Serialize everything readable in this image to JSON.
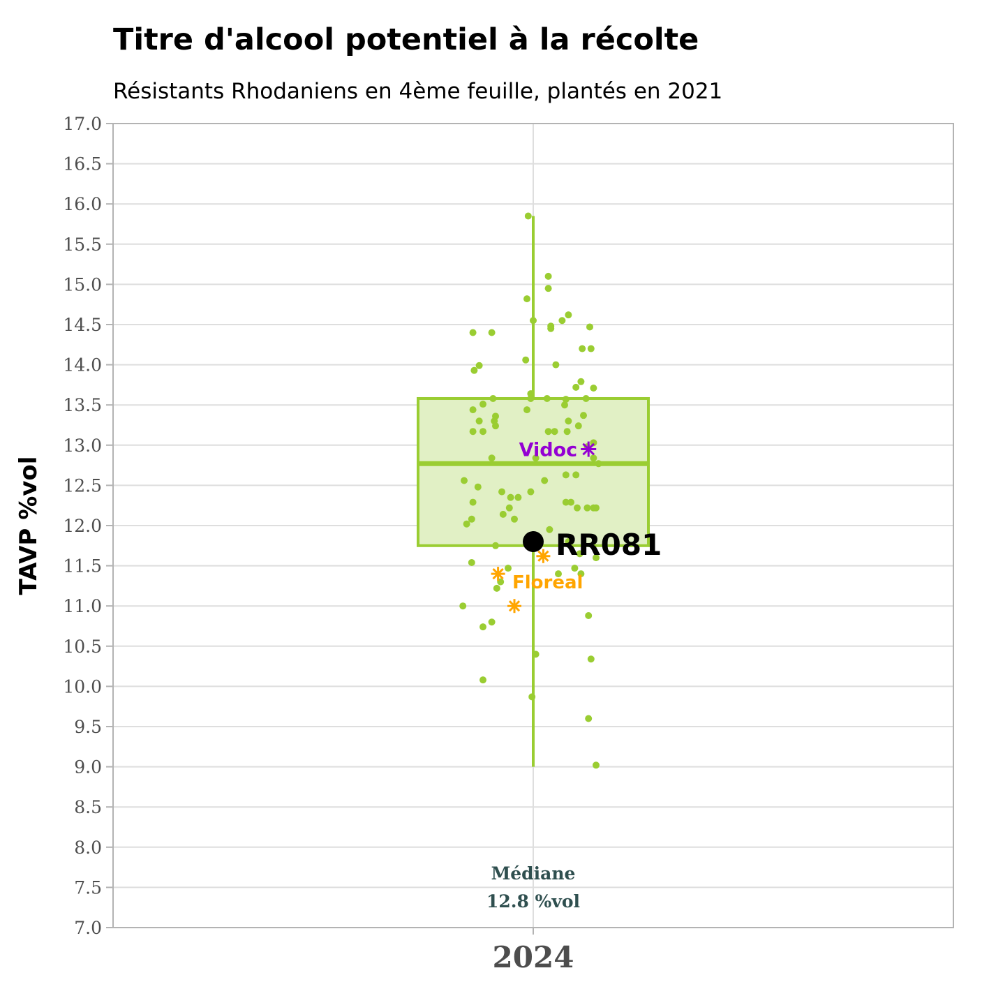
{
  "chart_data": {
    "type": "box",
    "title": "Titre d'alcool potentiel à la récolte",
    "subtitle": "Résistants Rhodaniens en 4ème feuille, plantés en 2021",
    "ylabel": "TAVP %vol",
    "xlabel": "",
    "ylim": [
      7.0,
      17.0
    ],
    "y_ticks": [
      "7.0",
      "7.5",
      "8.0",
      "8.5",
      "9.0",
      "9.5",
      "10.0",
      "10.5",
      "11.0",
      "11.5",
      "12.0",
      "12.5",
      "13.0",
      "13.5",
      "14.0",
      "14.5",
      "15.0",
      "15.5",
      "16.0",
      "16.5",
      "17.0"
    ],
    "categories": [
      "2024"
    ],
    "grid": true,
    "colors": {
      "box": "#9acd32",
      "box_fill": "#e1f0c5",
      "point": "#9acd32",
      "highlight": "#000000",
      "vidoc": "#9400d3",
      "floreal": "#ffa500",
      "median_note": "#2f4f4f"
    },
    "box": {
      "min": 9.0,
      "q1": 11.75,
      "median": 12.77,
      "q3": 13.58,
      "max": 15.85
    },
    "median_note": {
      "line1": "Médiane",
      "line2": "12.8 %vol"
    },
    "points": [
      [
        -0.04,
        15.85
      ],
      [
        0.12,
        15.1
      ],
      [
        0.12,
        14.95
      ],
      [
        -0.05,
        14.82
      ],
      [
        0.14,
        14.45
      ],
      [
        0.14,
        14.48
      ],
      [
        0.28,
        14.62
      ],
      [
        0.23,
        14.55
      ],
      [
        0.45,
        14.47
      ],
      [
        -0.48,
        14.4
      ],
      [
        -0.33,
        14.4
      ],
      [
        0.0,
        14.55
      ],
      [
        0.18,
        14.0
      ],
      [
        -0.06,
        14.06
      ],
      [
        -0.43,
        13.99
      ],
      [
        -0.47,
        13.93
      ],
      [
        0.39,
        14.2
      ],
      [
        0.46,
        14.2
      ],
      [
        0.38,
        13.79
      ],
      [
        0.34,
        13.72
      ],
      [
        0.42,
        13.58
      ],
      [
        0.11,
        13.58
      ],
      [
        -0.02,
        13.58
      ],
      [
        0.26,
        13.57
      ],
      [
        0.48,
        13.71
      ],
      [
        -0.32,
        13.58
      ],
      [
        -0.02,
        13.64
      ],
      [
        -0.4,
        13.51
      ],
      [
        -0.05,
        13.44
      ],
      [
        0.25,
        13.5
      ],
      [
        -0.48,
        13.44
      ],
      [
        -0.3,
        13.36
      ],
      [
        -0.31,
        13.3
      ],
      [
        -0.3,
        13.24
      ],
      [
        -0.43,
        13.3
      ],
      [
        0.4,
        13.37
      ],
      [
        0.28,
        13.3
      ],
      [
        0.36,
        13.24
      ],
      [
        -0.48,
        13.17
      ],
      [
        -0.4,
        13.17
      ],
      [
        0.12,
        13.17
      ],
      [
        0.17,
        13.17
      ],
      [
        0.27,
        13.17
      ],
      [
        0.43,
        12.98
      ],
      [
        0.48,
        13.03
      ],
      [
        0.48,
        12.84
      ],
      [
        0.52,
        12.77
      ],
      [
        0.02,
        12.84
      ],
      [
        -0.33,
        12.84
      ],
      [
        0.26,
        12.63
      ],
      [
        0.34,
        12.63
      ],
      [
        -0.55,
        12.56
      ],
      [
        -0.44,
        12.48
      ],
      [
        0.09,
        12.56
      ],
      [
        -0.25,
        12.42
      ],
      [
        -0.02,
        12.42
      ],
      [
        -0.18,
        12.35
      ],
      [
        -0.12,
        12.35
      ],
      [
        -0.48,
        12.29
      ],
      [
        0.26,
        12.29
      ],
      [
        0.3,
        12.29
      ],
      [
        -0.49,
        12.08
      ],
      [
        -0.53,
        12.02
      ],
      [
        -0.15,
        12.08
      ],
      [
        -0.24,
        12.14
      ],
      [
        0.43,
        12.22
      ],
      [
        0.48,
        12.22
      ],
      [
        0.5,
        12.22
      ],
      [
        -0.19,
        12.22
      ],
      [
        0.35,
        12.22
      ],
      [
        0.13,
        11.95
      ],
      [
        0.28,
        11.8
      ],
      [
        0.37,
        11.65
      ],
      [
        0.5,
        11.6
      ],
      [
        -0.3,
        11.75
      ],
      [
        -0.49,
        11.54
      ],
      [
        -0.2,
        11.47
      ],
      [
        0.33,
        11.47
      ],
      [
        0.2,
        11.4
      ],
      [
        0.38,
        11.4
      ],
      [
        -0.26,
        11.3
      ],
      [
        -0.29,
        11.22
      ],
      [
        -0.56,
        11.0
      ],
      [
        -0.33,
        10.8
      ],
      [
        -0.4,
        10.74
      ],
      [
        0.44,
        10.88
      ],
      [
        0.02,
        10.4
      ],
      [
        0.46,
        10.34
      ],
      [
        -0.4,
        10.08
      ],
      [
        -0.01,
        9.87
      ],
      [
        0.44,
        9.6
      ],
      [
        0.5,
        9.02
      ]
    ],
    "highlight": {
      "label": "RR081",
      "x": 0.0,
      "y": 11.8
    },
    "vidoc": {
      "label": "Vidoc",
      "x": 0.44,
      "y": 12.95
    },
    "floreal": {
      "label": "Floreal",
      "points": [
        [
          -0.28,
          11.4
        ],
        [
          0.08,
          11.62
        ],
        [
          -0.15,
          11.0
        ]
      ]
    }
  }
}
